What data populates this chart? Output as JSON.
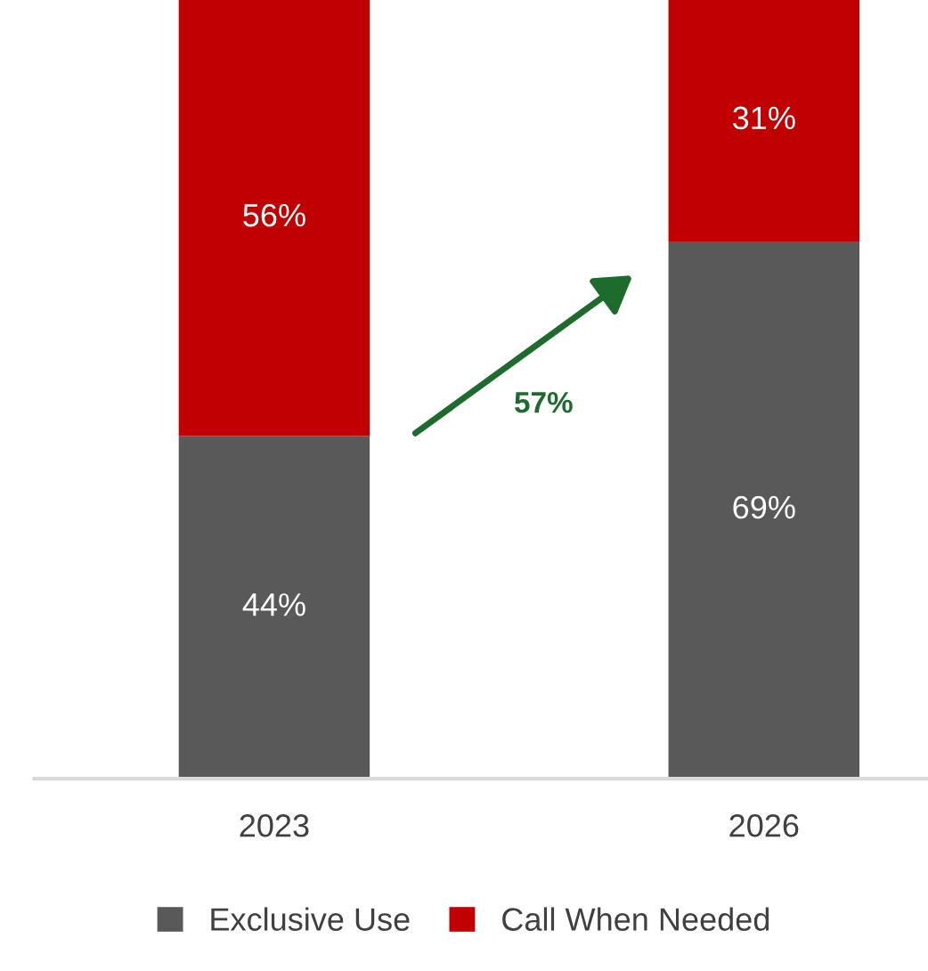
{
  "chart_data": {
    "type": "bar",
    "stacked": true,
    "legend": "bottom",
    "grid": false,
    "categories": [
      "2023",
      "2026"
    ],
    "series": [
      {
        "name": "Exclusive Use",
        "color": "#595959",
        "values": [
          44,
          69
        ],
        "value_labels": [
          "44%",
          "69%"
        ]
      },
      {
        "name": "Call When Needed",
        "color": "#c00000",
        "values": [
          56,
          31
        ],
        "value_labels": [
          "56%",
          "31%"
        ]
      }
    ],
    "annotations": [
      "57%"
    ]
  }
}
